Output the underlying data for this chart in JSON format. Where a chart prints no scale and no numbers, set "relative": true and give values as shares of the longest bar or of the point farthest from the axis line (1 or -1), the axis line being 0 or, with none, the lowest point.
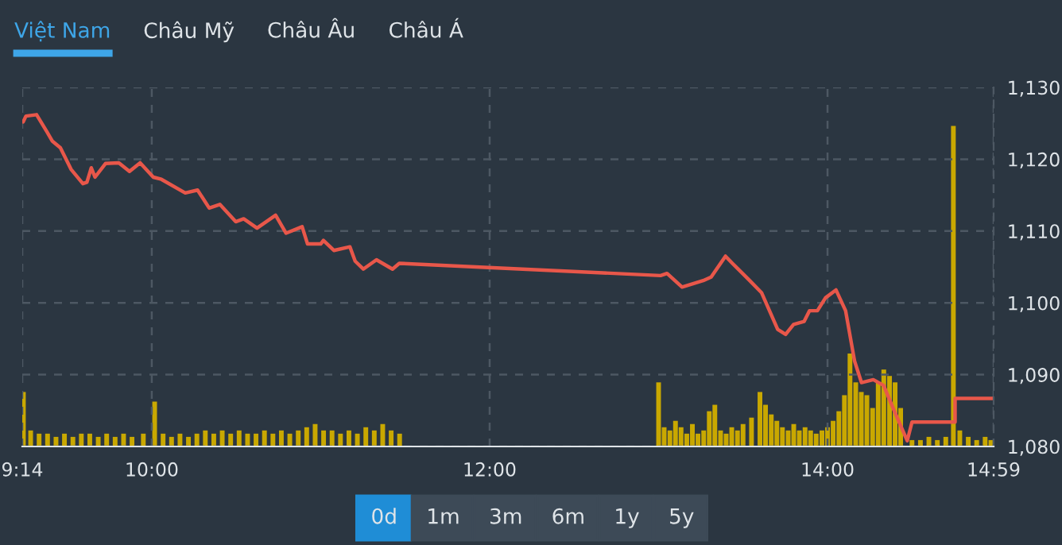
{
  "chart_data": [
    {
      "type": "line",
      "x": [
        9.239,
        9.255,
        9.318,
        9.38,
        9.412,
        9.459,
        9.522,
        9.592,
        9.616,
        9.642,
        9.664,
        9.726,
        9.805,
        9.868,
        9.931,
        10.009,
        10.057,
        10.198,
        10.271,
        10.34,
        10.403,
        10.497,
        10.544,
        10.623,
        10.733,
        10.795,
        10.89,
        10.922,
        11.0,
        11.016,
        11.078,
        11.173,
        11.204,
        11.252,
        11.33,
        11.425,
        11.465,
        13.012,
        13.05,
        13.139,
        13.264,
        13.311,
        13.396,
        13.437,
        13.531,
        13.61,
        13.705,
        13.752,
        13.799,
        13.861,
        13.893,
        13.94,
        13.988,
        14.05,
        14.107,
        14.16,
        14.201,
        14.271,
        14.332,
        14.396,
        14.472,
        14.5,
        14.755,
        14.755,
        14.983
      ],
      "series": [
        {
          "color": "#e8574a",
          "values": [
            1125.2,
            1126.0,
            1126.2,
            1123.8,
            1122.5,
            1121.6,
            1118.6,
            1116.6,
            1116.8,
            1118.8,
            1117.5,
            1119.4,
            1119.5,
            1118.3,
            1119.5,
            1117.5,
            1117.2,
            1115.3,
            1115.7,
            1113.2,
            1113.7,
            1111.3,
            1111.7,
            1110.4,
            1112.2,
            1109.7,
            1110.6,
            1108.2,
            1108.2,
            1108.7,
            1107.3,
            1107.8,
            1105.8,
            1104.7,
            1106.0,
            1104.7,
            1105.5,
            1103.8,
            1104.1,
            1102.2,
            1103.1,
            1103.6,
            1106.5,
            1105.5,
            1103.3,
            1101.4,
            1096.3,
            1095.6,
            1097.0,
            1097.4,
            1098.9,
            1098.9,
            1100.7,
            1101.8,
            1098.9,
            1091.9,
            1088.9,
            1089.3,
            1088.5,
            1084.9,
            1080.8,
            1083.4,
            1083.4,
            1086.7,
            1086.7
          ]
        }
      ],
      "xlim": [
        9.2333,
        14.9833
      ],
      "xticks": [
        {
          "value": 9.2333,
          "label": "9:14"
        },
        {
          "value": 10,
          "label": "10:00"
        },
        {
          "value": 12,
          "label": "12:00"
        },
        {
          "value": 14,
          "label": "14:00"
        },
        {
          "value": 14.9833,
          "label": "14:59"
        }
      ],
      "ylim": [
        1080,
        1130
      ],
      "yticks": [
        {
          "value": 1080,
          "label": "1,080"
        },
        {
          "value": 1090,
          "label": "1,090"
        },
        {
          "value": 1100,
          "label": "1,100"
        },
        {
          "value": 1110,
          "label": "1,110"
        },
        {
          "value": 1120,
          "label": "1,120"
        },
        {
          "value": 1130,
          "label": "1,130"
        }
      ],
      "grid": true,
      "annotations": [
        "Việt Nam",
        "Châu Mỹ",
        "Châu Âu",
        "Châu Á",
        "0d",
        "1m",
        "3m",
        "6m",
        "1y",
        "5y"
      ]
    },
    {
      "type": "bar",
      "relative": true,
      "tick_labels": false,
      "xlim": [
        9.2333,
        14.9833
      ],
      "x": [
        9.24,
        9.283,
        9.333,
        9.383,
        9.433,
        9.483,
        9.533,
        9.583,
        9.633,
        9.683,
        9.733,
        9.783,
        9.833,
        9.883,
        9.95,
        10.017,
        10.067,
        10.117,
        10.167,
        10.217,
        10.267,
        10.317,
        10.367,
        10.417,
        10.467,
        10.517,
        10.567,
        10.617,
        10.667,
        10.717,
        10.767,
        10.817,
        10.867,
        10.917,
        10.967,
        11.017,
        11.067,
        11.117,
        11.167,
        11.217,
        11.267,
        11.317,
        11.367,
        11.417,
        11.467,
        13.0,
        13.033,
        13.067,
        13.1,
        13.133,
        13.167,
        13.2,
        13.233,
        13.267,
        13.3,
        13.333,
        13.367,
        13.4,
        13.433,
        13.467,
        13.5,
        13.55,
        13.6,
        13.633,
        13.667,
        13.7,
        13.733,
        13.767,
        13.8,
        13.833,
        13.867,
        13.9,
        13.933,
        13.967,
        14.0,
        14.033,
        14.067,
        14.1,
        14.133,
        14.167,
        14.2,
        14.233,
        14.267,
        14.3,
        14.333,
        14.367,
        14.4,
        14.433,
        14.467,
        14.5,
        14.55,
        14.6,
        14.65,
        14.7,
        14.745,
        14.783,
        14.833,
        14.883,
        14.933,
        14.967
      ],
      "series": [
        {
          "color": "#c9a800",
          "values": [
            0.17,
            0.05,
            0.04,
            0.04,
            0.03,
            0.04,
            0.03,
            0.04,
            0.04,
            0.03,
            0.04,
            0.03,
            0.04,
            0.03,
            0.04,
            0.14,
            0.04,
            0.03,
            0.04,
            0.03,
            0.04,
            0.05,
            0.04,
            0.05,
            0.04,
            0.05,
            0.04,
            0.04,
            0.05,
            0.04,
            0.05,
            0.04,
            0.05,
            0.06,
            0.07,
            0.05,
            0.05,
            0.04,
            0.05,
            0.04,
            0.06,
            0.05,
            0.07,
            0.05,
            0.04,
            0.2,
            0.06,
            0.05,
            0.08,
            0.06,
            0.04,
            0.07,
            0.04,
            0.05,
            0.11,
            0.13,
            0.05,
            0.04,
            0.06,
            0.05,
            0.07,
            0.09,
            0.17,
            0.13,
            0.1,
            0.08,
            0.06,
            0.05,
            0.07,
            0.05,
            0.06,
            0.05,
            0.04,
            0.05,
            0.06,
            0.08,
            0.11,
            0.16,
            0.29,
            0.2,
            0.17,
            0.16,
            0.12,
            0.2,
            0.24,
            0.22,
            0.2,
            0.12,
            null,
            0.02,
            0.02,
            0.03,
            0.02,
            0.03,
            1.0,
            0.05,
            0.03,
            0.02,
            0.03,
            0.02
          ]
        }
      ]
    }
  ]
}
